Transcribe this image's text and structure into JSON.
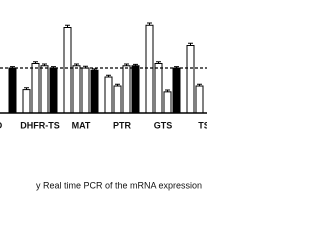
{
  "chart_data": {
    "type": "bar",
    "caption": "y Real time PCR of the mRNA expression",
    "categories": [
      "D",
      "DHFR-TS",
      "MAT",
      "PTR",
      "GTS",
      "TS"
    ],
    "series": [
      {
        "color": "#ffffff",
        "values": [
          null,
          0.52,
          1.9,
          0.8,
          1.95,
          1.5
        ],
        "errors": [
          null,
          0.04,
          0.05,
          0.04,
          0.05,
          0.05
        ]
      },
      {
        "color": "#ffffff",
        "values": [
          null,
          1.1,
          1.05,
          0.6,
          1.1,
          0.6
        ],
        "errors": [
          null,
          0.04,
          0.04,
          0.04,
          0.04,
          0.04
        ]
      },
      {
        "color": "#ffffff",
        "values": [
          null,
          1.05,
          1.0,
          1.05,
          0.47,
          null
        ],
        "errors": [
          null,
          0.04,
          0.04,
          0.04,
          0.04,
          null
        ]
      },
      {
        "color": "#000000",
        "values": [
          1.0,
          1.0,
          0.95,
          1.05,
          1.0,
          null
        ],
        "errors": [
          0.03,
          0.03,
          0.03,
          0.03,
          0.03,
          null
        ]
      }
    ],
    "reference_line": 1,
    "ylim": [
      0,
      2.5
    ]
  }
}
